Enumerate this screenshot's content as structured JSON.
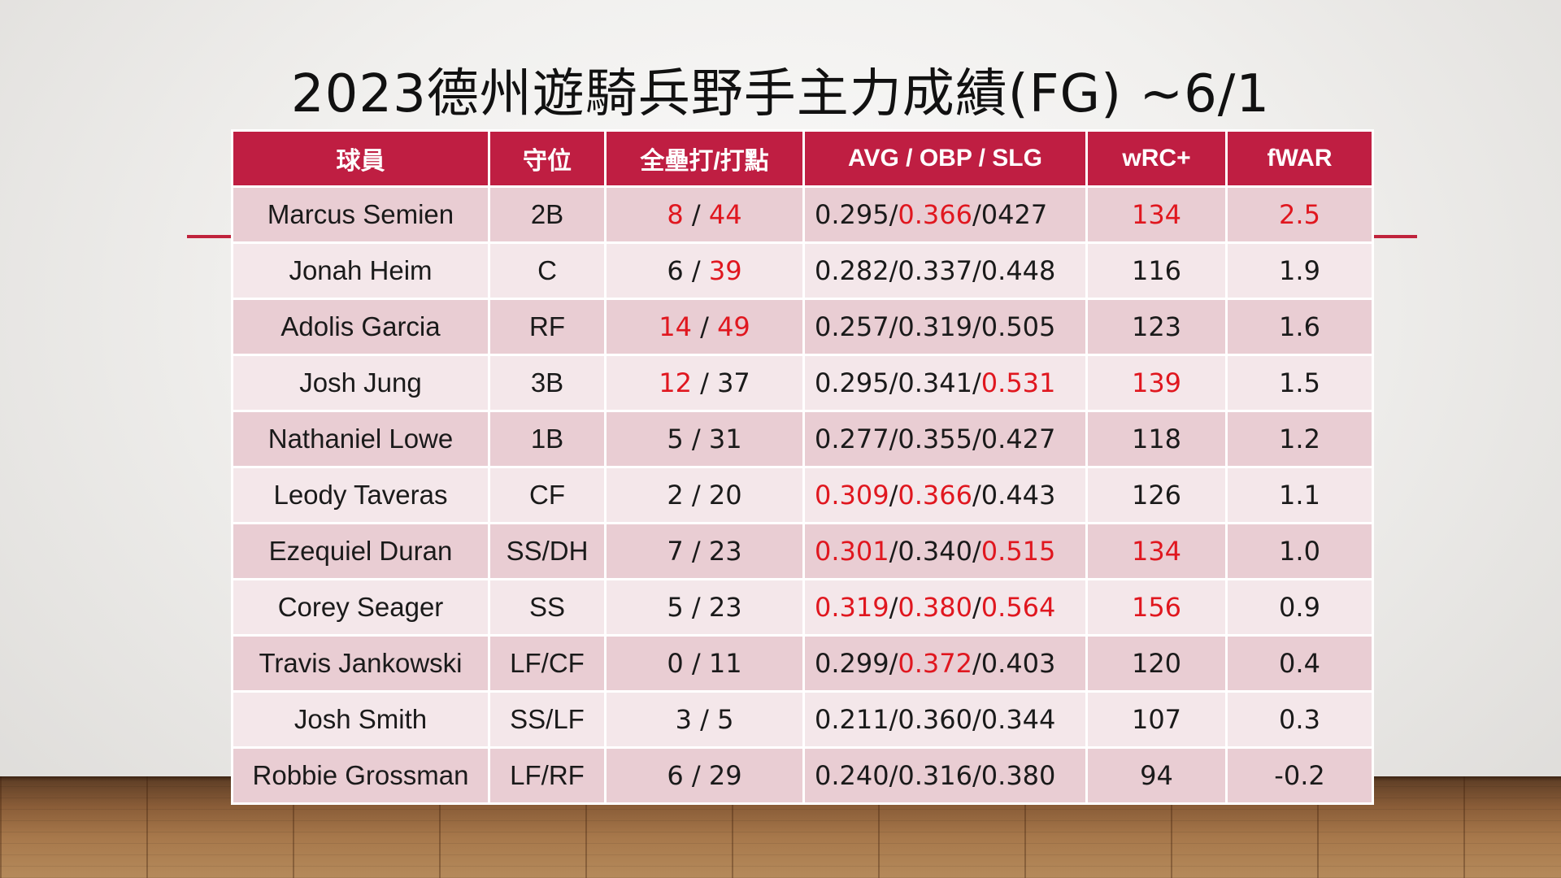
{
  "title": "2023德州遊騎兵野手主力成績(FG) ~6/1",
  "colors": {
    "header_bg": "#bf1e42",
    "row_odd": "#e9cdd3",
    "row_even": "#f4e7ea",
    "highlight": "#e0171f"
  },
  "columns": [
    "球員",
    "守位",
    "全壘打/打點",
    "AVG / OBP / SLG",
    "wRC+",
    "fWAR"
  ],
  "rows": [
    {
      "player": "Marcus Semien",
      "pos": "2B",
      "hr": "8",
      "rbi": "44",
      "avg": "0.295",
      "obp": "0.366",
      "slg": "0427",
      "wrc": "134",
      "fwar": "2.5",
      "hl": [
        "hr",
        "rbi",
        "obp",
        "wrc",
        "fwar"
      ]
    },
    {
      "player": "Jonah Heim",
      "pos": "C",
      "hr": "6",
      "rbi": "39",
      "avg": "0.282",
      "obp": "0.337",
      "slg": "0.448",
      "wrc": "116",
      "fwar": "1.9",
      "hl": [
        "rbi"
      ]
    },
    {
      "player": "Adolis Garcia",
      "pos": "RF",
      "hr": "14",
      "rbi": "49",
      "avg": "0.257",
      "obp": "0.319",
      "slg": "0.505",
      "wrc": "123",
      "fwar": "1.6",
      "hl": [
        "hr",
        "rbi"
      ]
    },
    {
      "player": "Josh Jung",
      "pos": "3B",
      "hr": "12",
      "rbi": "37",
      "avg": "0.295",
      "obp": "0.341",
      "slg": "0.531",
      "wrc": "139",
      "fwar": "1.5",
      "hl": [
        "hr",
        "slg",
        "wrc"
      ]
    },
    {
      "player": "Nathaniel Lowe",
      "pos": "1B",
      "hr": "5",
      "rbi": "31",
      "avg": "0.277",
      "obp": "0.355",
      "slg": "0.427",
      "wrc": "118",
      "fwar": "1.2",
      "hl": []
    },
    {
      "player": "Leody Taveras",
      "pos": "CF",
      "hr": "2",
      "rbi": "20",
      "avg": "0.309",
      "obp": "0.366",
      "slg": "0.443",
      "wrc": "126",
      "fwar": "1.1",
      "hl": [
        "avg",
        "obp"
      ]
    },
    {
      "player": "Ezequiel Duran",
      "pos": "SS/DH",
      "hr": "7",
      "rbi": "23",
      "avg": "0.301",
      "obp": "0.340",
      "slg": "0.515",
      "wrc": "134",
      "fwar": "1.0",
      "hl": [
        "avg",
        "slg",
        "wrc"
      ]
    },
    {
      "player": "Corey Seager",
      "pos": "SS",
      "hr": "5",
      "rbi": "23",
      "avg": "0.319",
      "obp": "0.380",
      "slg": "0.564",
      "wrc": "156",
      "fwar": "0.9",
      "hl": [
        "avg",
        "obp",
        "slg",
        "wrc"
      ]
    },
    {
      "player": "Travis Jankowski",
      "pos": "LF/CF",
      "hr": "0",
      "rbi": "11",
      "avg": "0.299",
      "obp": "0.372",
      "slg": "0.403",
      "wrc": "120",
      "fwar": "0.4",
      "hl": [
        "obp"
      ]
    },
    {
      "player": "Josh Smith",
      "pos": "SS/LF",
      "hr": "3",
      "rbi": "5",
      "avg": "0.211",
      "obp": "0.360",
      "slg": "0.344",
      "wrc": "107",
      "fwar": "0.3",
      "hl": []
    },
    {
      "player": "Robbie Grossman",
      "pos": "LF/RF",
      "hr": "6",
      "rbi": "29",
      "avg": "0.240",
      "obp": "0.316",
      "slg": "0.380",
      "wrc": "94",
      "fwar": "-0.2",
      "hl": []
    }
  ]
}
